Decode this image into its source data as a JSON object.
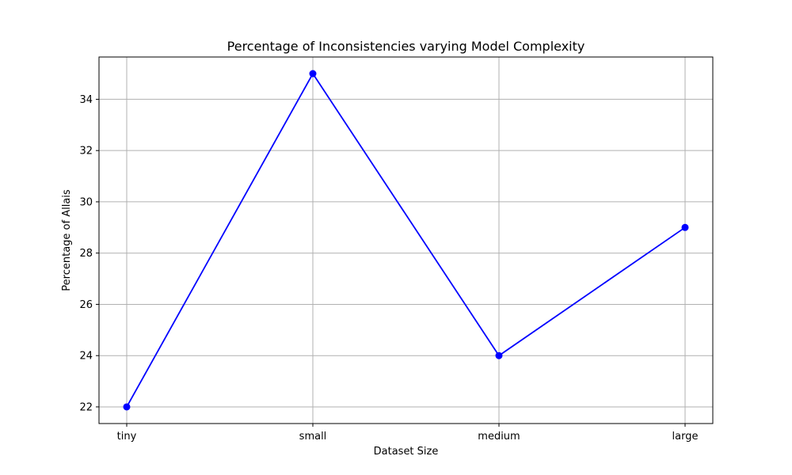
{
  "chart_data": {
    "type": "line",
    "title": "Percentage of Inconsistencies varying Model Complexity",
    "xlabel": "Dataset Size",
    "ylabel": "Percentage of Allais",
    "categories": [
      "tiny",
      "small",
      "medium",
      "large"
    ],
    "series": [
      {
        "values": [
          22,
          35,
          24,
          29
        ],
        "color": "#0000ff",
        "marker": "circle"
      }
    ],
    "ylim": [
      21.35,
      35.65
    ],
    "yticks": [
      22,
      24,
      26,
      28,
      30,
      32,
      34
    ],
    "grid": true,
    "grid_color": "#b0b0b0"
  }
}
